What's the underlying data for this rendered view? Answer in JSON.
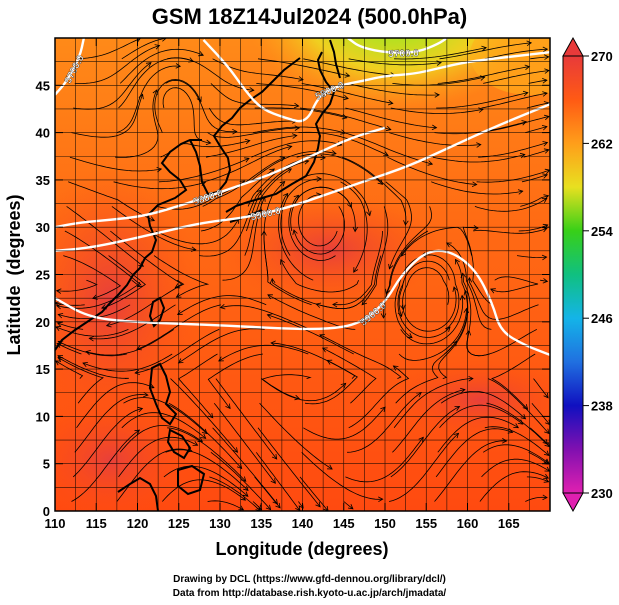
{
  "title": "GSM 18Z14Jul2024 (500.0hPa)",
  "chart_data": {
    "type": "heatmap",
    "xlabel": "Longitude (degrees)",
    "ylabel": "Latitude  (degrees)",
    "xlim": [
      110,
      170
    ],
    "ylim": [
      0,
      50
    ],
    "x_ticks": [
      110,
      115,
      120,
      125,
      130,
      135,
      140,
      145,
      150,
      155,
      160,
      165
    ],
    "y_ticks": [
      0,
      5,
      10,
      15,
      20,
      25,
      30,
      35,
      40,
      45
    ],
    "colorbar": {
      "min": 230,
      "max": 270,
      "ticks": [
        270,
        262,
        254,
        246,
        238,
        230
      ],
      "stops": [
        {
          "value": 270,
          "color": "#e83a3a"
        },
        {
          "value": 266,
          "color": "#ff5a14"
        },
        {
          "value": 262,
          "color": "#ff9e1a"
        },
        {
          "value": 258,
          "color": "#e8e020"
        },
        {
          "value": 254,
          "color": "#38d018"
        },
        {
          "value": 250,
          "color": "#10c080"
        },
        {
          "value": 246,
          "color": "#14b4e8"
        },
        {
          "value": 242,
          "color": "#2070e0"
        },
        {
          "value": 238,
          "color": "#1010c0"
        },
        {
          "value": 234,
          "color": "#8010b0"
        },
        {
          "value": 230,
          "color": "#e020b0"
        }
      ]
    },
    "contours": [
      {
        "label": "5900.0",
        "points": [
          [
            110,
            22.5
          ],
          [
            114,
            20.5
          ],
          [
            119,
            20
          ],
          [
            125,
            19.8
          ],
          [
            131,
            19.6
          ],
          [
            137,
            19.3
          ],
          [
            143,
            19.2
          ],
          [
            147,
            19.8
          ],
          [
            150,
            22
          ],
          [
            152,
            25
          ],
          [
            155,
            27.5
          ],
          [
            158,
            27.5
          ],
          [
            161,
            25.5
          ],
          [
            163,
            22
          ],
          [
            164,
            19
          ],
          [
            167,
            17.5
          ],
          [
            170,
            16.5
          ]
        ]
      },
      {
        "label": "5900.0",
        "points": [
          [
            110,
            27.5
          ],
          [
            114,
            27.8
          ],
          [
            118,
            28.5
          ],
          [
            123,
            29.5
          ],
          [
            128,
            30.5
          ],
          [
            133,
            31
          ],
          [
            138,
            32
          ],
          [
            143,
            33.5
          ],
          [
            148,
            35
          ],
          [
            153,
            36.5
          ],
          [
            158,
            38.5
          ],
          [
            163,
            40.5
          ],
          [
            170,
            43
          ]
        ]
      },
      {
        "label": "5800.0",
        "points": [
          [
            110,
            30
          ],
          [
            113,
            30.5
          ],
          [
            117,
            30.8
          ],
          [
            121,
            31.2
          ],
          [
            126,
            32.5
          ],
          [
            131,
            34
          ],
          [
            136,
            35.5
          ],
          [
            141,
            37.5
          ],
          [
            146,
            39.5
          ],
          [
            150,
            40.5
          ]
        ]
      },
      {
        "label": "5800.0",
        "points": [
          [
            128,
            49.8
          ],
          [
            131,
            47
          ],
          [
            133,
            44.5
          ],
          [
            135,
            42.5
          ],
          [
            138,
            41.5
          ],
          [
            140.5,
            41
          ],
          [
            142,
            44
          ],
          [
            144.5,
            45
          ],
          [
            147.5,
            45.5
          ],
          [
            150,
            46
          ],
          [
            153.5,
            46.2
          ],
          [
            156.5,
            46.8
          ],
          [
            160,
            47.5
          ],
          [
            165,
            48
          ],
          [
            170,
            48.5
          ]
        ]
      },
      {
        "label": "5700.0",
        "points": [
          [
            145.5,
            50
          ],
          [
            147,
            49
          ],
          [
            150.5,
            48.4
          ],
          [
            154,
            48.5
          ],
          [
            156.5,
            49.4
          ],
          [
            157.5,
            50
          ]
        ]
      },
      {
        "label": "5700.0",
        "points": [
          [
            110,
            44
          ],
          [
            111.5,
            45.5
          ],
          [
            113,
            48
          ],
          [
            113.5,
            50
          ]
        ]
      }
    ]
  },
  "credits": {
    "line1": "Drawing by DCL (https://www.gfd-dennou.org/library/dcl/)",
    "line2": "Data from http://database.rish.kyoto-u.ac.jp/arch/jmadata/"
  }
}
